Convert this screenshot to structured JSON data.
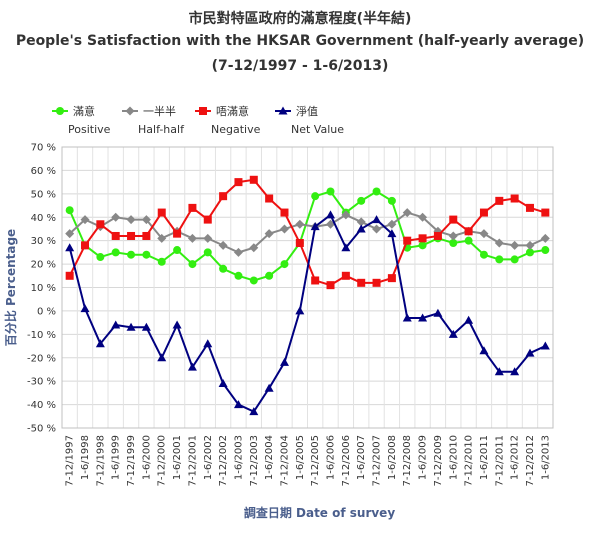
{
  "header": {
    "title_zh": "市民對特區政府的滿意程度(半年結)",
    "title_en": "People's Satisfaction with the HKSAR Government (half-yearly average)",
    "subtitle": "(7-12/1997 - 1-6/2013)"
  },
  "chart_data": {
    "type": "line",
    "x": [
      "7-12/1997",
      "1-6/1998",
      "7-12/1998",
      "1-6/1999",
      "7-12/1999",
      "1-6/2000",
      "7-12/2000",
      "1-6/2001",
      "7-12/2001",
      "1-6/2002",
      "7-12/2002",
      "1-6/2003",
      "7-12/2003",
      "1-6/2004",
      "7-12/2004",
      "1-6/2005",
      "7-12/2005",
      "1-6/2006",
      "7-12/2006",
      "1-6/2007",
      "7-12/2007",
      "1-6/2008",
      "7-12/2008",
      "1-6/2009",
      "7-12/2009",
      "1-6/2010",
      "7-12/2010",
      "1-6/2011",
      "7-12/2011",
      "1-6/2012",
      "7-12/2012",
      "1-6/2013"
    ],
    "xlabel": "調查日期 Date of survey",
    "ylabel": "百分比 Percentage",
    "ylim": [
      -50,
      70
    ],
    "yticks": [
      70,
      60,
      50,
      40,
      30,
      20,
      10,
      0,
      -10,
      -20,
      -30,
      -40,
      -50
    ],
    "ytick_labels": [
      "70 %",
      "60 %",
      "50 %",
      "40 %",
      "30 %",
      "20 %",
      "10 %",
      "0 %",
      "-10 %",
      "-20 %",
      "-30 %",
      "-40 %",
      "-50 %"
    ],
    "grid": true,
    "legend_position": "top-left",
    "series": [
      {
        "name": "滿意",
        "name_en": "Positive",
        "color": "#33ee11",
        "marker": "circle",
        "values": [
          43,
          28,
          23,
          25,
          24,
          24,
          21,
          26,
          20,
          25,
          18,
          15,
          13,
          15,
          20,
          29,
          49,
          51,
          42,
          47,
          51,
          47,
          27,
          28,
          31,
          29,
          30,
          24,
          22,
          22,
          25,
          26
        ]
      },
      {
        "name": "一半半",
        "name_en": "Half-half",
        "color": "#888888",
        "marker": "diamond",
        "values": [
          33,
          39,
          36,
          40,
          39,
          39,
          31,
          34,
          31,
          31,
          28,
          25,
          27,
          33,
          35,
          37,
          36,
          37,
          41,
          38,
          35,
          37,
          42,
          40,
          34,
          32,
          34,
          33,
          29,
          28,
          28,
          31
        ]
      },
      {
        "name": "唔滿意",
        "name_en": "Negative",
        "color": "#ee1111",
        "marker": "square",
        "values": [
          15,
          28,
          37,
          32,
          32,
          32,
          42,
          33,
          44,
          39,
          49,
          55,
          56,
          48,
          42,
          29,
          13,
          11,
          15,
          12,
          12,
          14,
          30,
          31,
          32,
          39,
          34,
          42,
          47,
          48,
          44,
          42
        ]
      },
      {
        "name": "淨值",
        "name_en": "Net Value",
        "color": "#000080",
        "marker": "triangle",
        "values": [
          27,
          1,
          -14,
          -6,
          -7,
          -7,
          -20,
          -6,
          -24,
          -14,
          -31,
          -40,
          -43,
          -33,
          -22,
          0,
          36,
          41,
          27,
          35,
          39,
          33,
          -3,
          -3,
          -1,
          -10,
          -4,
          -17,
          -26,
          -26,
          -18,
          -15
        ]
      }
    ]
  }
}
